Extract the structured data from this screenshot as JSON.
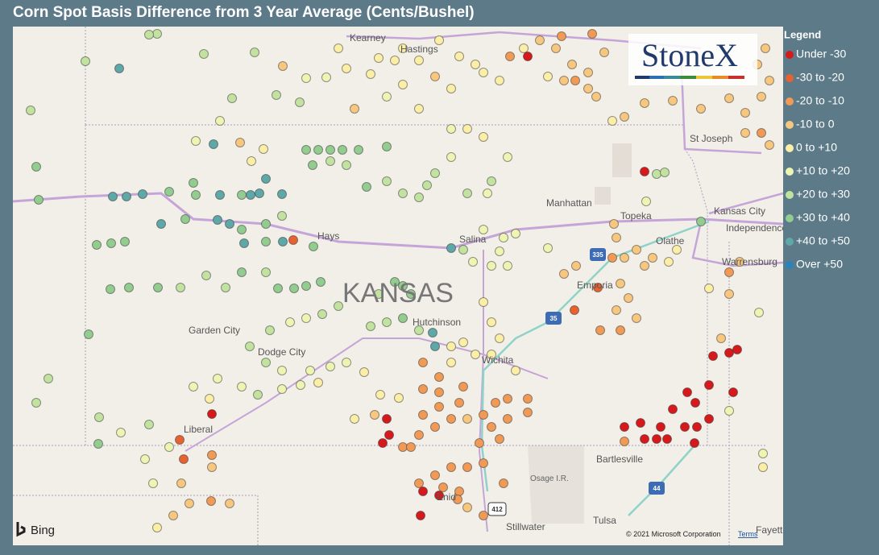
{
  "title": "Corn Spot Basis Difference from 3 Year Average (Cents/Bushel)",
  "legend": {
    "title": "Legend",
    "items": [
      {
        "name": "Under -30",
        "color": "#d7191c"
      },
      {
        "name": "-30 to -20",
        "color": "#e8622f"
      },
      {
        "name": "-20 to -10",
        "color": "#f09a55"
      },
      {
        "name": "-10 to 0",
        "color": "#f7c77f"
      },
      {
        "name": "0 to +10",
        "color": "#fbeea6"
      },
      {
        "name": "+10 to +20",
        "color": "#eef5b3"
      },
      {
        "name": "+20 to +30",
        "color": "#c2e3a0"
      },
      {
        "name": "+30 to +40",
        "color": "#93cc8f"
      },
      {
        "name": "+40 to +50",
        "color": "#5fa8a8"
      },
      {
        "name": "Over +50",
        "color": "#2b83ba"
      }
    ]
  },
  "map": {
    "state": "KANSAS",
    "places": [
      "Kearney",
      "Hastings",
      "St Joseph",
      "Manhattan",
      "Topeka",
      "Kansas City",
      "Independence",
      "Olathe",
      "Warrensburg",
      "Hays",
      "Salina",
      "Emporia",
      "Hutchinson",
      "Garden City",
      "Dodge City",
      "Wichita",
      "Liberal",
      "Bartlesville",
      "Osage I.R.",
      "Enid",
      "Stillwater",
      "Tulsa",
      "Fayetteville"
    ],
    "highways": [
      "335",
      "35",
      "412",
      "44"
    ]
  },
  "logo": "StoneX",
  "bing": "Bing",
  "copyright": "© 2021 Microsoft Corporation",
  "terms": "Terms"
}
